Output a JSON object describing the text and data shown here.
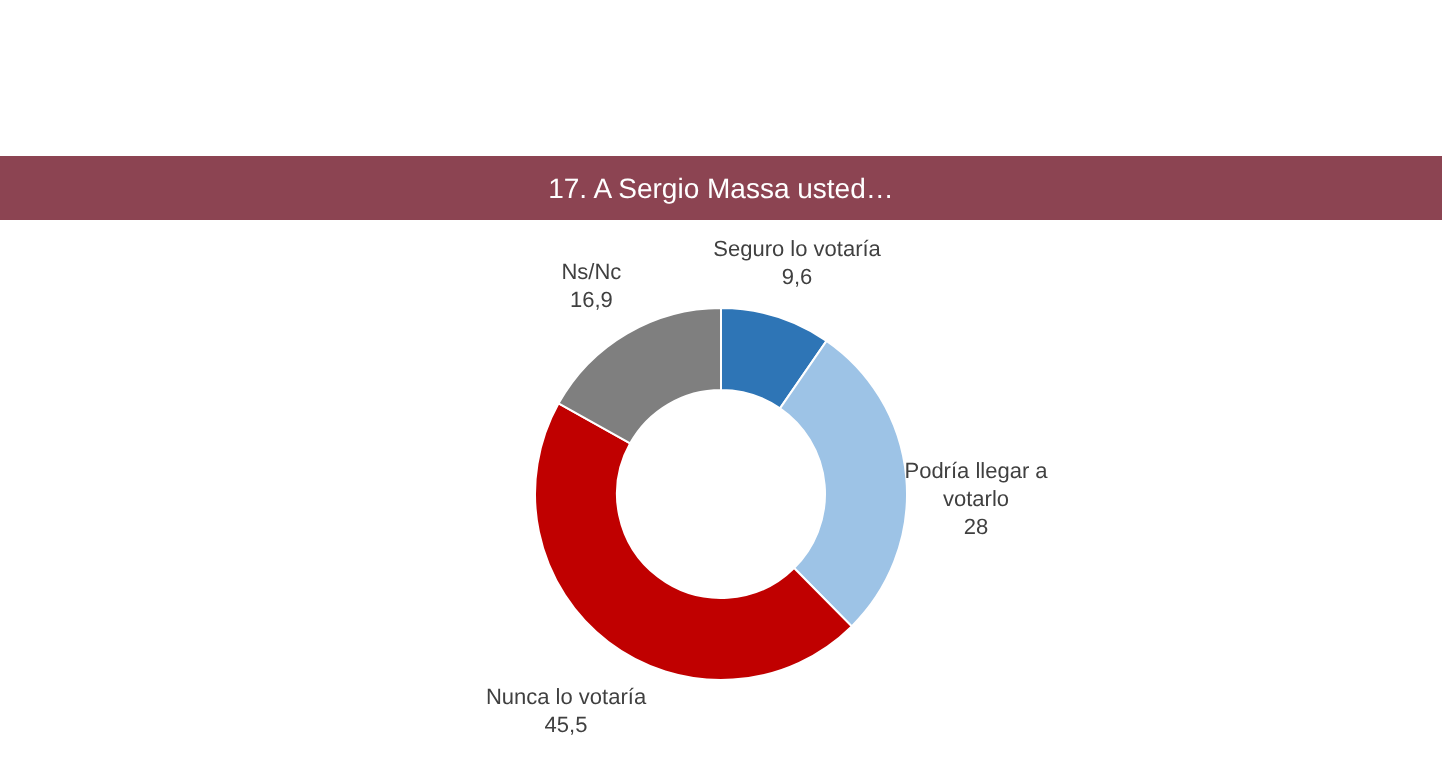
{
  "chart_data": {
    "type": "donut",
    "title": "17. A Sergio Massa usted…",
    "categories": [
      "Seguro lo votaría",
      "Podría llegar a votarlo",
      "Nunca lo votaría",
      "Ns/Nc"
    ],
    "values": [
      9.6,
      28,
      45.5,
      16.9
    ],
    "value_labels": [
      "9,6",
      "28",
      "45,5",
      "16,9"
    ],
    "colors": [
      "#2e75b6",
      "#9dc3e6",
      "#c00000",
      "#7f7f7f"
    ]
  }
}
